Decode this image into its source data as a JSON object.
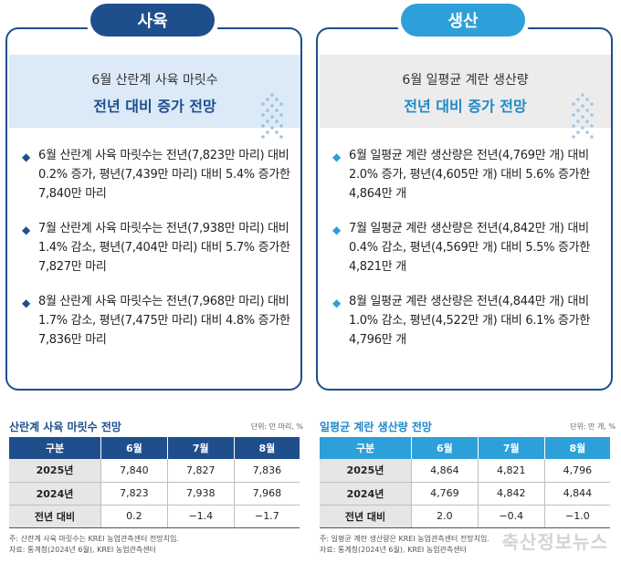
{
  "left": {
    "tab": "사육",
    "headline_sub": "6월 산란계 사육 마릿수",
    "headline_main": "전년 대비 증가 전망",
    "bullets": [
      "6월 산란계 사육 마릿수는 전년(7,823만 마리) 대비 0.2% 증가, 평년(7,439만 마리) 대비 5.4% 증가한 7,840만 마리",
      "7월 산란계 사육 마릿수는 전년(7,938만 마리) 대비 1.4% 감소, 평년(7,404만 마리) 대비 5.7% 증가한 7,827만 마리",
      "8월 산란계 사육 마릿수는 전년(7,968만 마리) 대비 1.7% 감소, 평년(7,475만 마리) 대비 4.8% 증가한 7,836만 마리"
    ],
    "table_title": "산란계 사육 마릿수 전망",
    "unit": "단위: 만 마리, %",
    "headers": [
      "구분",
      "6월",
      "7월",
      "8월"
    ],
    "rows": [
      [
        "2025년",
        "7,840",
        "7,827",
        "7,836"
      ],
      [
        "2024년",
        "7,823",
        "7,938",
        "7,968"
      ],
      [
        "전년 대비",
        "0.2",
        "−1.4",
        "−1.7"
      ]
    ],
    "note1": "주: 산란계 사육 마릿수는 KREI 농업관측센터 전망치임.",
    "note2": "자료: 통계청(2024년 6월), KREI 농업관측센터"
  },
  "right": {
    "tab": "생산",
    "headline_sub": "6월 일평균 계란 생산량",
    "headline_main": "전년 대비 증가 전망",
    "bullets": [
      "6월 일평균 계란 생산량은 전년(4,769만 개) 대비 2.0% 증가, 평년(4,605만 개) 대비 5.6% 증가한 4,864만 개",
      "7월 일평균 계란 생산량은 전년(4,842만 개) 대비 0.4% 감소, 평년(4,569만 개) 대비 5.5% 증가한 4,821만 개",
      "8월 일평균 계란 생산량은 전년(4,844만 개) 대비 1.0% 감소, 평년(4,522만 개) 대비 6.1% 증가한 4,796만 개"
    ],
    "table_title": "일평균 계란 생산량 전망",
    "unit": "단위: 만 개, %",
    "headers": [
      "구분",
      "6월",
      "7월",
      "8월"
    ],
    "rows": [
      [
        "2025년",
        "4,864",
        "4,821",
        "4,796"
      ],
      [
        "2024년",
        "4,769",
        "4,842",
        "4,844"
      ],
      [
        "전년 대비",
        "2.0",
        "−0.4",
        "−1.0"
      ]
    ],
    "note1": "주: 일평균 계란 생산량은 KREI 농업관측센터 전망치임.",
    "note2": "자료: 통계청(2024년 6월), KREI 농업관측센터"
  },
  "watermark": "축산정보뉴스",
  "colors": {
    "navy": "#1f4e8c",
    "sky": "#2d9fd9",
    "headline_bg_left": "#dbeaf6",
    "headline_bg_right": "#ececec"
  },
  "icons": {
    "bullet": "diamond-bullet-icon",
    "decoration": "up-arrows-dots-icon"
  }
}
